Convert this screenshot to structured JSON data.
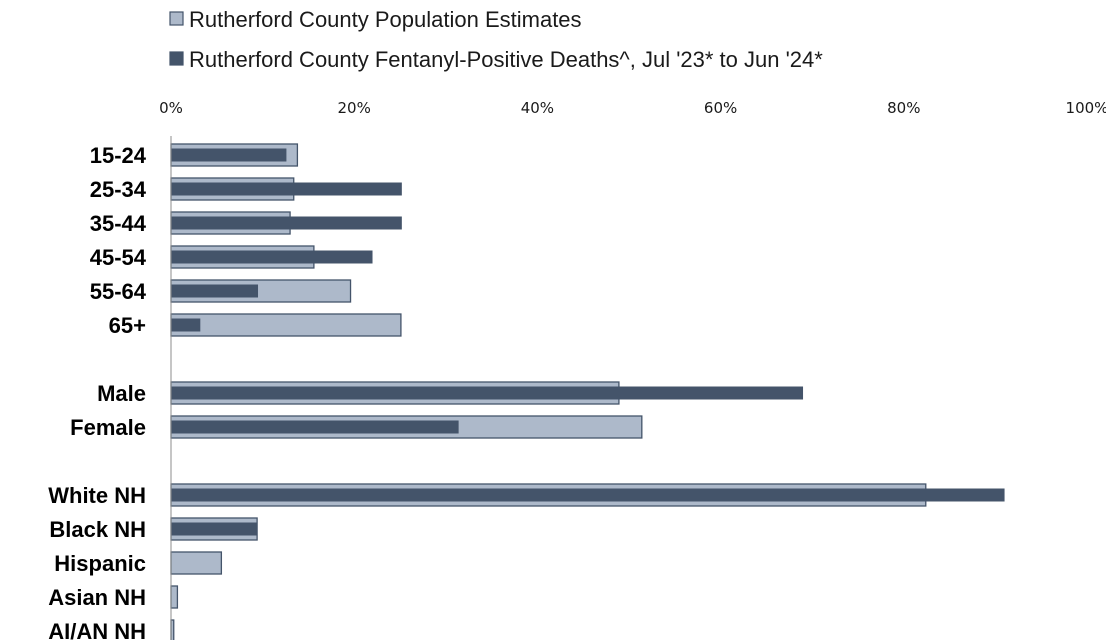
{
  "colors": {
    "population": "#adb9ca",
    "deaths": "#44546a",
    "outline": "#44546a"
  },
  "chart_data": {
    "type": "bar",
    "orientation": "horizontal",
    "title": "",
    "xlabel": "",
    "ylabel": "",
    "xlim": [
      0,
      100
    ],
    "x_tick_labels": [
      "0%",
      "20%",
      "40%",
      "60%",
      "80%",
      "100%"
    ],
    "legend_position": "top",
    "groups": [
      {
        "categories": [
          "15-24",
          "25-34",
          "35-44",
          "45-54",
          "55-64",
          "65+"
        ]
      },
      {
        "categories": [
          "Male",
          "Female"
        ]
      },
      {
        "categories": [
          "White NH",
          "Black NH",
          "Hispanic",
          "Asian NH",
          "AI/AN NH"
        ]
      }
    ],
    "categories": [
      "15-24",
      "25-34",
      "35-44",
      "45-54",
      "55-64",
      "65+",
      "Male",
      "Female",
      "White NH",
      "Black NH",
      "Hispanic",
      "Asian NH",
      "AI/AN NH"
    ],
    "series": [
      {
        "name": "Rutherford County Population Estimates",
        "values": [
          13.8,
          13.4,
          13.0,
          15.6,
          19.6,
          25.1,
          48.9,
          51.4,
          82.4,
          9.4,
          5.5,
          0.7,
          0.3
        ]
      },
      {
        "name": "Rutherford County Fentanyl-Positive Deaths^, Jul '23* to Jun '24*",
        "values": [
          12.6,
          25.2,
          25.2,
          22.0,
          9.5,
          3.2,
          69.0,
          31.4,
          91.0,
          9.4,
          0,
          0,
          0
        ]
      }
    ]
  }
}
